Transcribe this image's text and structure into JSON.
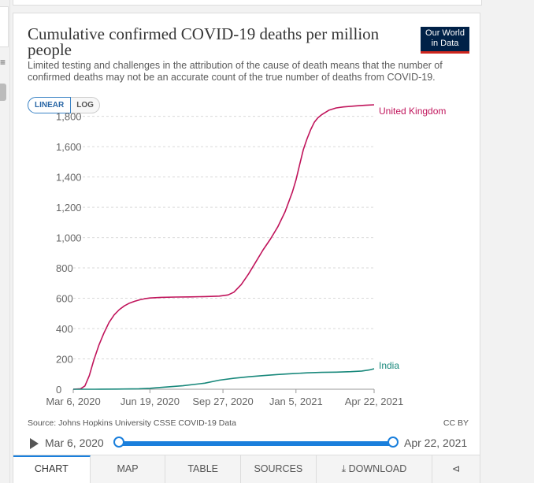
{
  "title": "Cumulative confirmed COVID-19 deaths per million people",
  "subtitle": "Limited testing and challenges in the attribution of the cause of death means that the number of confirmed deaths may not be an accurate count of the true number of deaths from COVID-19.",
  "logo": {
    "line1": "Our World",
    "line2": "in Data"
  },
  "scale_toggle": {
    "linear": "LINEAR",
    "log": "LOG"
  },
  "source": "Source: Johns Hopkins University CSSE COVID-19 Data",
  "license": "CC BY",
  "timeline": {
    "start": "Mar 6, 2020",
    "end": "Apr 22, 2021"
  },
  "tabs": {
    "chart": "CHART",
    "map": "MAP",
    "table": "TABLE",
    "sources": "SOURCES",
    "download": "DOWNLOAD"
  },
  "colors": {
    "uk": "#c0145b",
    "india": "#18887b",
    "grid": "#d9d9d9"
  },
  "chart_data": {
    "type": "line",
    "title": "Cumulative confirmed COVID-19 deaths per million people",
    "xlabel": "",
    "ylabel": "",
    "x_range_days": [
      0,
      412
    ],
    "ylim": [
      0,
      1850
    ],
    "yticks": [
      0,
      200,
      400,
      600,
      800,
      1000,
      1200,
      1400,
      1600,
      1800
    ],
    "ytick_labels": [
      "0",
      "200",
      "400",
      "600",
      "800",
      "1,000",
      "1,200",
      "1,400",
      "1,600",
      "1,800"
    ],
    "xticks": [
      0,
      105,
      205,
      305,
      412
    ],
    "xtick_labels": [
      "Mar 6, 2020",
      "Jun 19, 2020",
      "Sep 27, 2020",
      "Jan 5, 2021",
      "Apr 22, 2021"
    ],
    "series": [
      {
        "name": "United Kingdom",
        "days": [
          0,
          10,
          16,
          22,
          28,
          35,
          42,
          49,
          56,
          63,
          70,
          77,
          84,
          91,
          98,
          105,
          120,
          140,
          160,
          180,
          200,
          212,
          220,
          230,
          240,
          250,
          260,
          270,
          280,
          290,
          300,
          305,
          310,
          315,
          320,
          325,
          330,
          335,
          340,
          345,
          350,
          360,
          370,
          380,
          390,
          400,
          412
        ],
        "values": [
          0,
          3,
          22,
          90,
          190,
          290,
          370,
          440,
          490,
          525,
          550,
          568,
          580,
          590,
          597,
          602,
          606,
          608,
          609,
          611,
          614,
          622,
          640,
          690,
          760,
          840,
          920,
          990,
          1070,
          1170,
          1300,
          1380,
          1480,
          1580,
          1650,
          1710,
          1760,
          1790,
          1810,
          1825,
          1840,
          1855,
          1862,
          1866,
          1870,
          1873,
          1876
        ]
      },
      {
        "name": "India",
        "days": [
          0,
          30,
          60,
          90,
          105,
          120,
          150,
          180,
          200,
          220,
          240,
          260,
          280,
          300,
          320,
          340,
          360,
          380,
          395,
          405,
          412
        ],
        "values": [
          0,
          0,
          1,
          3,
          6,
          12,
          23,
          40,
          60,
          72,
          82,
          90,
          97,
          103,
          108,
          111,
          113,
          116,
          120,
          127,
          135
        ]
      }
    ],
    "line_labels": [
      "United Kingdom",
      "India"
    ]
  }
}
